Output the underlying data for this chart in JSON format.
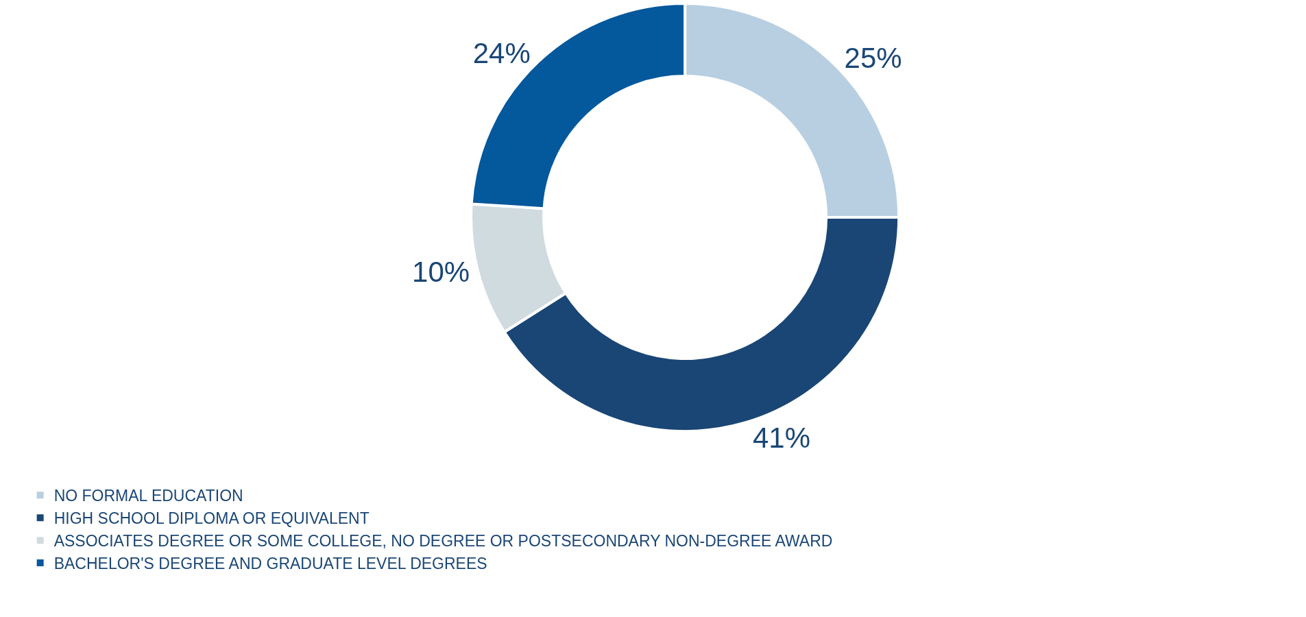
{
  "chart_data": {
    "type": "donut",
    "categories": [
      "NO FORMAL EDUCATION",
      "HIGH SCHOOL DIPLOMA OR EQUIVALENT",
      "ASSOCIATES DEGREE OR SOME COLLEGE, NO DEGREE OR POSTSECONDARY NON-DEGREE AWARD",
      "BACHELOR'S DEGREE AND GRADUATE LEVEL DEGREES"
    ],
    "values": [
      25,
      41,
      10,
      24
    ],
    "colors": [
      "#b8cfe2",
      "#1a4675",
      "#d0dbe0",
      "#04589c"
    ],
    "value_labels": [
      "25%",
      "41%",
      "10%",
      "24%"
    ],
    "legend": "bottom left"
  }
}
